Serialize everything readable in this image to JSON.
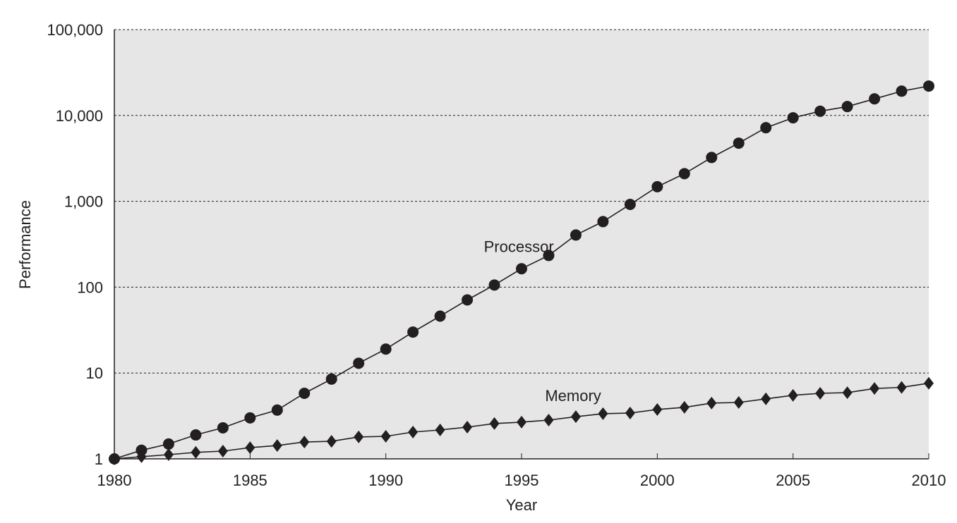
{
  "chart_data": {
    "type": "line",
    "title": "",
    "xlabel": "Year",
    "ylabel": "Performance",
    "xlim": [
      1980,
      2010
    ],
    "ylim": [
      1,
      100000
    ],
    "yscale": "log",
    "grid": "horizontal dashed",
    "background": "#e6e6e6",
    "line_color": "#231f20",
    "x_ticks": [
      "1980",
      "1985",
      "1990",
      "1995",
      "2000",
      "2005",
      "2010"
    ],
    "y_ticks": [
      "1",
      "10",
      "100",
      "1,000",
      "10,000",
      "100,000"
    ],
    "y_tick_values": [
      1,
      10,
      100,
      1000,
      10000,
      100000
    ],
    "x": [
      1980,
      1981,
      1982,
      1983,
      1984,
      1985,
      1986,
      1987,
      1988,
      1989,
      1990,
      1991,
      1992,
      1993,
      1994,
      1995,
      1996,
      1997,
      1998,
      1999,
      2000,
      2001,
      2002,
      2003,
      2004,
      2005,
      2006,
      2007,
      2008,
      2009,
      2010
    ],
    "series": [
      {
        "name": "Processor",
        "marker": "circle",
        "values": [
          1,
          1.26,
          1.49,
          1.9,
          2.3,
          3.0,
          3.7,
          5.8,
          8.5,
          13,
          19,
          30,
          46,
          71,
          106,
          164,
          234,
          405,
          580,
          920,
          1480,
          2100,
          3240,
          4760,
          7200,
          9400,
          11200,
          12700,
          15600,
          19200,
          22000
        ]
      },
      {
        "name": "Memory",
        "marker": "diamond",
        "values": [
          1,
          1.06,
          1.12,
          1.19,
          1.23,
          1.35,
          1.43,
          1.57,
          1.6,
          1.8,
          1.83,
          2.05,
          2.17,
          2.34,
          2.58,
          2.68,
          2.83,
          3.1,
          3.36,
          3.42,
          3.76,
          3.98,
          4.46,
          4.54,
          5.0,
          5.5,
          5.8,
          5.9,
          6.6,
          6.8,
          7.6
        ]
      }
    ],
    "annotations": [
      {
        "text": "Processor",
        "x": 1994.9,
        "y": 300
      },
      {
        "text": "Memory",
        "x": 1996.9,
        "y": 5.5
      }
    ]
  }
}
